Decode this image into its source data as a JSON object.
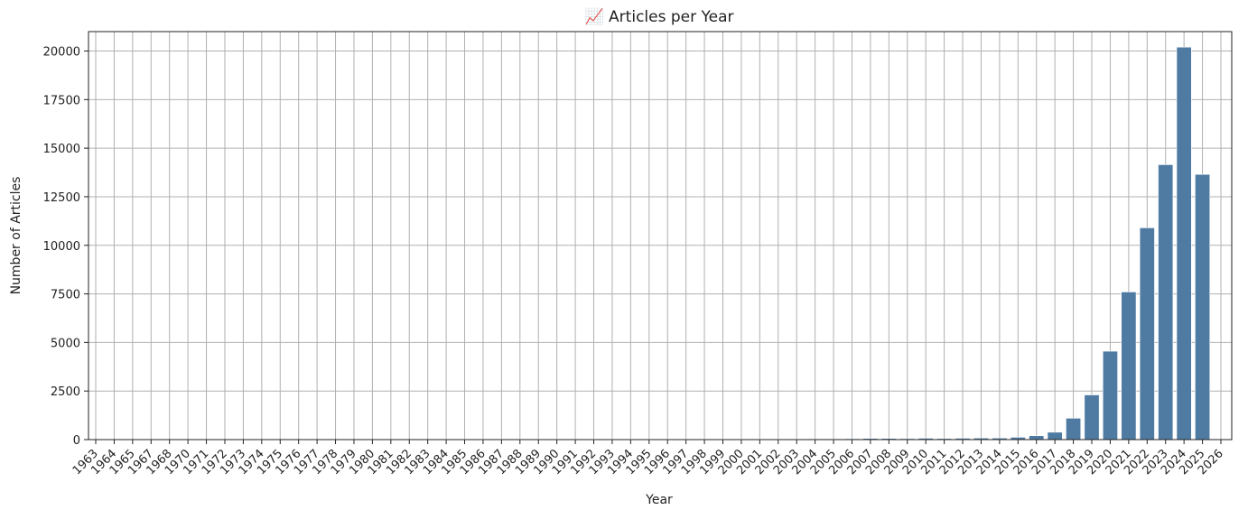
{
  "chart_data": {
    "type": "bar",
    "title": "📈 Articles per Year",
    "xlabel": "Year",
    "ylabel": "Number of Articles",
    "ylim": [
      0,
      21000
    ],
    "yticks": [
      0,
      2500,
      5000,
      7500,
      10000,
      12500,
      15000,
      17500,
      20000
    ],
    "categories": [
      "1963",
      "1964",
      "1965",
      "1967",
      "1968",
      "1970",
      "1971",
      "1972",
      "1973",
      "1974",
      "1975",
      "1976",
      "1977",
      "1978",
      "1979",
      "1980",
      "1981",
      "1982",
      "1983",
      "1984",
      "1985",
      "1986",
      "1987",
      "1988",
      "1989",
      "1990",
      "1991",
      "1992",
      "1993",
      "1994",
      "1995",
      "1996",
      "1997",
      "1998",
      "1999",
      "2000",
      "2001",
      "2002",
      "2003",
      "2004",
      "2005",
      "2006",
      "2007",
      "2008",
      "2009",
      "2010",
      "2011",
      "2012",
      "2013",
      "2014",
      "2015",
      "2016",
      "2017",
      "2018",
      "2019",
      "2020",
      "2021",
      "2022",
      "2023",
      "2024",
      "2025",
      "2026"
    ],
    "values": [
      0,
      0,
      0,
      0,
      0,
      0,
      0,
      0,
      0,
      0,
      0,
      0,
      0,
      0,
      0,
      0,
      0,
      0,
      0,
      20,
      25,
      25,
      30,
      30,
      30,
      30,
      35,
      35,
      35,
      35,
      35,
      35,
      35,
      35,
      35,
      35,
      35,
      35,
      35,
      40,
      40,
      45,
      60,
      60,
      50,
      70,
      55,
      70,
      80,
      80,
      120,
      200,
      380,
      1100,
      2300,
      4550,
      7600,
      10900,
      14150,
      20200,
      13650,
      0
    ],
    "bar_color": "#4f7ba3",
    "grid": true
  }
}
